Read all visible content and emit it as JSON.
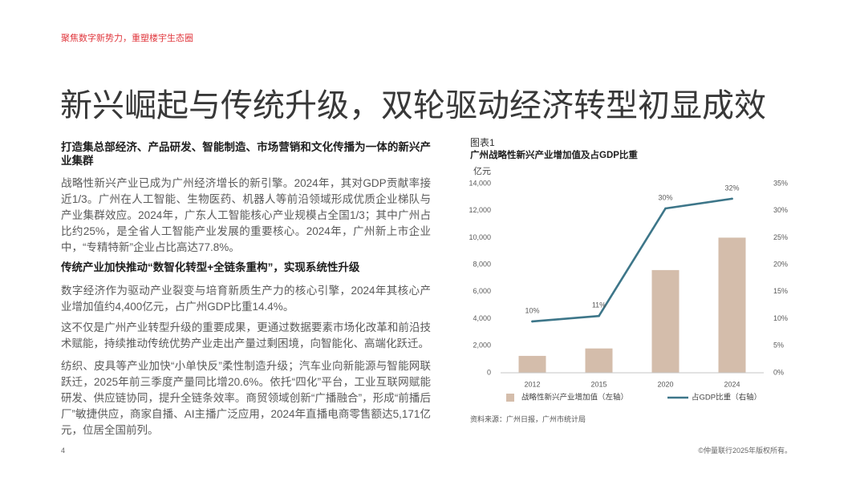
{
  "theme": {
    "accent": "#e0383e"
  },
  "header": {
    "tagline": "聚焦数字新势力，重塑楼宇生态圈"
  },
  "title": "新兴崛起与传统升级，双轮驱动经济转型初显成效",
  "sections": [
    {
      "heading": "打造集总部经济、产品研发、智能制造、市场营销和文化传播为一体的新兴产业集群",
      "paragraphs": [
        "战略性新兴产业已成为广州经济增长的新引擎。2024年，其对GDP贡献率接近1/3。广州在人工智能、生物医药、机器人等前沿领域形成优质企业梯队与产业集群效应。2024年，广东人工智能核心产业规模占全国1/3；其中广州占比约25%，是全省人工智能产业发展的重要核心。2024年，广州新上市企业中，“专精特新”企业占比高达77.8%。"
      ]
    },
    {
      "heading": "传统产业加快推动“数智化转型+全链条重构”，实现系统性升级",
      "paragraphs": [
        "数字经济作为驱动产业裂变与培育新质生产力的核心引擎，2024年其核心产业增加值约4,400亿元，占广州GDP比重14.4%。",
        "这不仅是广州产业转型升级的重要成果，更通过数据要素市场化改革和前沿技术赋能，持续推动传统优势产业走出产量过剩困境，向智能化、高端化跃迁。",
        "纺织、皮具等产业加快“小单快反”柔性制造升级；汽车业向新能源与智能网联跃迁，2025年前三季度产量同比增20.6%。依托“四化”平台，工业互联网赋能研发、供应链协同，提升全链条效率。商贸领域创新“广播融合”，形成“前播后厂”敏捷供应，商家自播、AI主播广泛应用，2024年直播电商零售额达5,171亿元，位居全国前列。"
      ]
    }
  ],
  "chart_data": {
    "type": "bar",
    "figure_label": "图表1",
    "title": "广州战略性新兴产业增加值及占GDP比重",
    "ylabel": "亿元",
    "categories": [
      "2012",
      "2015",
      "2020",
      "2024"
    ],
    "series": [
      {
        "name": "战略性新兴产业增加值（左轴）",
        "type": "bar",
        "axis": "left",
        "values": [
          1250,
          1800,
          7600,
          10000
        ],
        "color": "#d4bdab"
      },
      {
        "name": "占GDP比重（右轴）",
        "type": "line",
        "axis": "right",
        "values": [
          9.5,
          10.5,
          30.4,
          32.2
        ],
        "data_labels": [
          "10%",
          "11%",
          "30%",
          "32%"
        ],
        "color": "#3d7689"
      }
    ],
    "ylim": [
      0,
      14000
    ],
    "yticks": [
      0,
      2000,
      4000,
      6000,
      8000,
      10000,
      12000,
      14000
    ],
    "ytick_labels": [
      "0",
      "2,000",
      "4,000",
      "6,000",
      "8,000",
      "10,000",
      "12,000",
      "14,000"
    ],
    "y2lim": [
      0,
      35
    ],
    "y2ticks": [
      0,
      5,
      10,
      15,
      20,
      25,
      30,
      35
    ],
    "y2tick_labels": [
      "0%",
      "5%",
      "10%",
      "15%",
      "20%",
      "25%",
      "30%",
      "35%"
    ],
    "grid": false,
    "legend": "bottom",
    "source": "资料来源：广州日报，广州市统计局"
  },
  "footer": {
    "page_number": "4",
    "copyright": "©仲量联行2025年版权所有。"
  }
}
